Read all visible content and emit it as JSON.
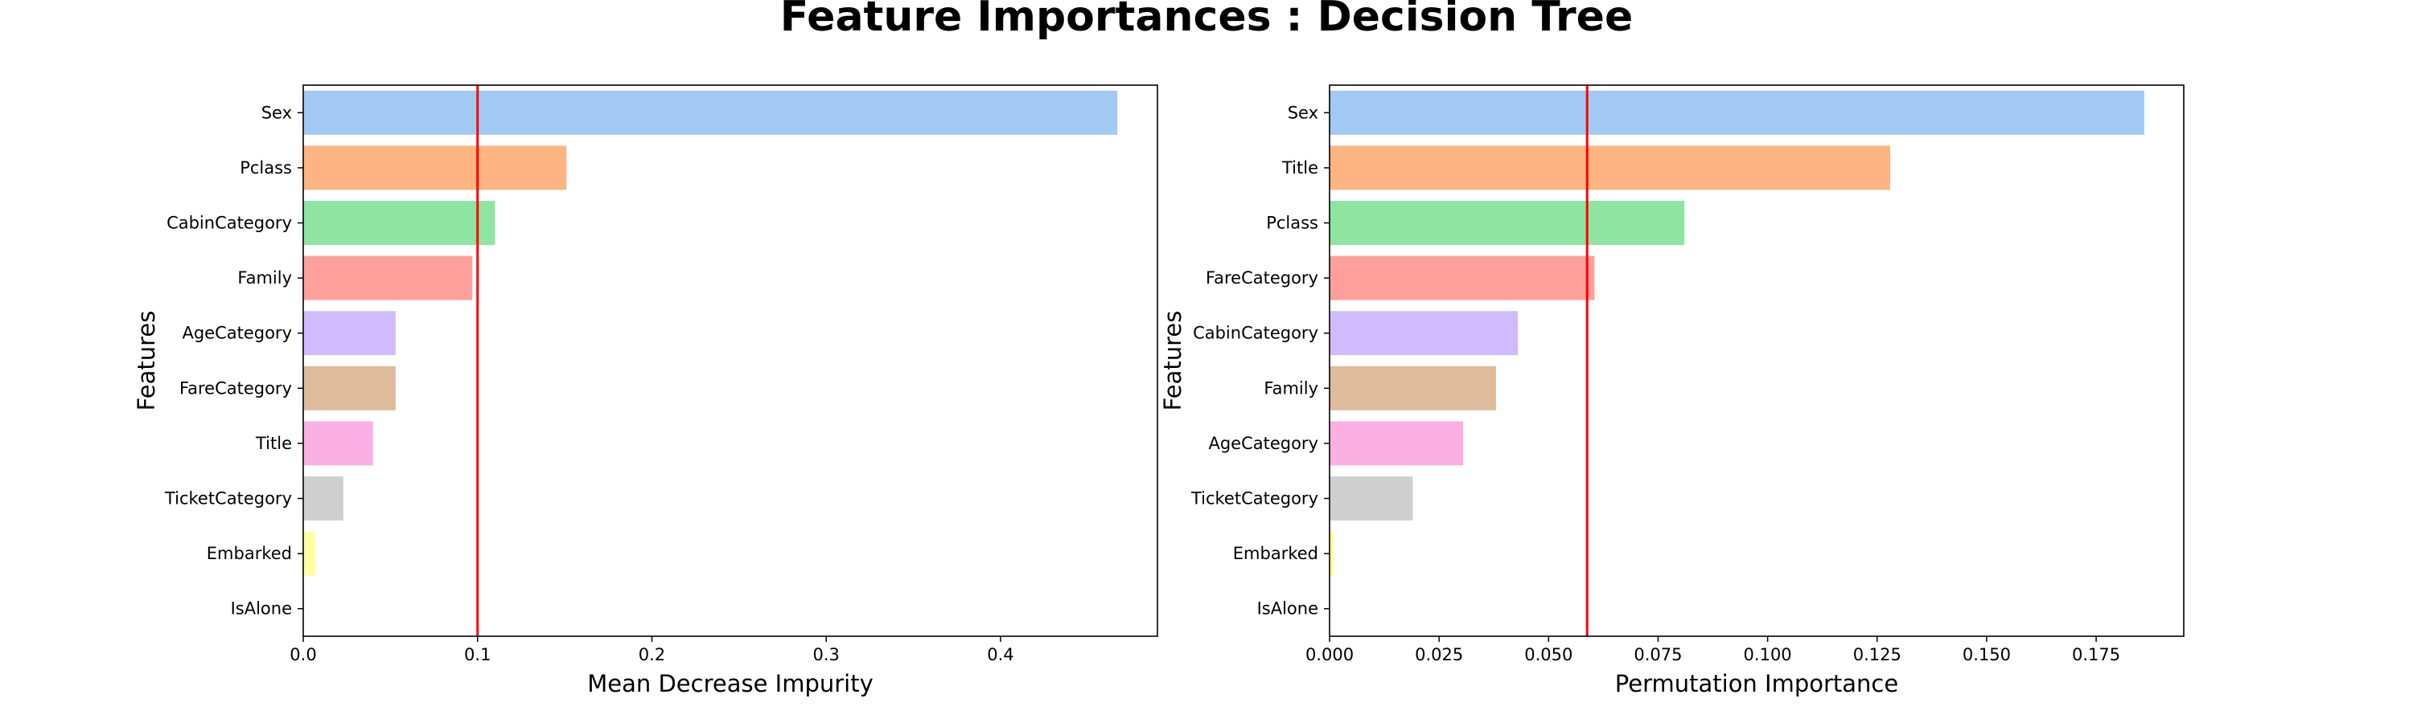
{
  "title": "Feature Importances : Decision Tree",
  "colors": [
    "#a1c9f4",
    "#ffb482",
    "#8de5a1",
    "#ff9f9b",
    "#d0bbff",
    "#debb9b",
    "#fab0e4",
    "#cfcfcf",
    "#fffea3",
    "#b9f2f0"
  ],
  "threshold_color": "#ff0000",
  "chart_data": [
    {
      "type": "bar",
      "orientation": "horizontal",
      "categories": [
        "Sex",
        "Pclass",
        "CabinCategory",
        "Family",
        "AgeCategory",
        "FareCategory",
        "Title",
        "TicketCategory",
        "Embarked",
        "IsAlone"
      ],
      "values": [
        0.467,
        0.151,
        0.11,
        0.097,
        0.053,
        0.053,
        0.04,
        0.023,
        0.007,
        0.0
      ],
      "xlabel": "Mean Decrease Impurity",
      "ylabel": "Features",
      "xlim": [
        0,
        0.49
      ],
      "xticks": [
        0.0,
        0.1,
        0.2,
        0.3,
        0.4
      ],
      "xtick_labels": [
        "0.0",
        "0.1",
        "0.2",
        "0.3",
        "0.4"
      ],
      "threshold": 0.1,
      "grid": false
    },
    {
      "type": "bar",
      "orientation": "horizontal",
      "categories": [
        "Sex",
        "Title",
        "Pclass",
        "FareCategory",
        "CabinCategory",
        "Family",
        "AgeCategory",
        "TicketCategory",
        "Embarked",
        "IsAlone"
      ],
      "values": [
        0.186,
        0.128,
        0.081,
        0.0605,
        0.043,
        0.038,
        0.0305,
        0.019,
        0.001,
        0.0
      ],
      "xlabel": "Permutation Importance",
      "ylabel": "Features",
      "xlim": [
        0,
        0.195
      ],
      "xticks": [
        0.0,
        0.025,
        0.05,
        0.075,
        0.1,
        0.125,
        0.15,
        0.175
      ],
      "xtick_labels": [
        "0.000",
        "0.025",
        "0.050",
        "0.075",
        "0.100",
        "0.125",
        "0.150",
        "0.175"
      ],
      "threshold": 0.0588,
      "grid": false
    }
  ]
}
